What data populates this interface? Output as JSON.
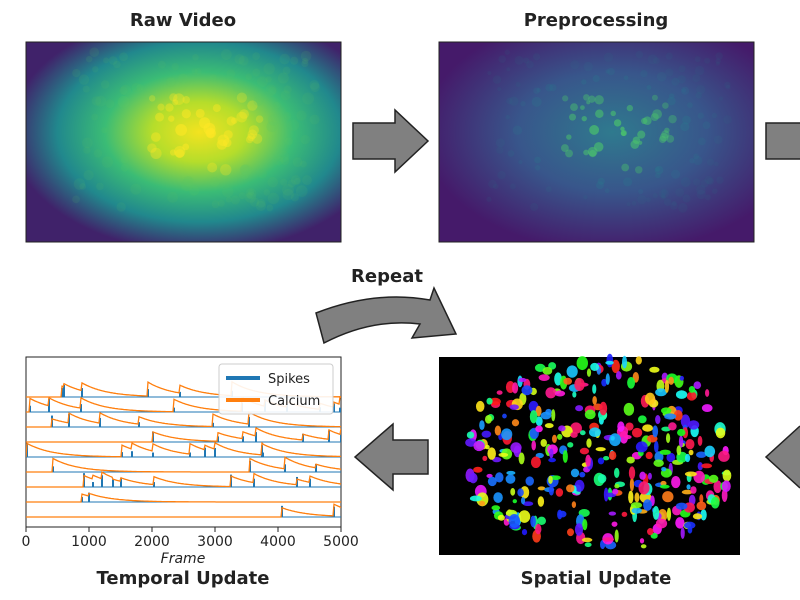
{
  "panels": {
    "raw_video": {
      "title": "Raw Video"
    },
    "preprocessing": {
      "title": "Preprocessing"
    },
    "spatial_update": {
      "title": "Spatial Update"
    },
    "temporal_update": {
      "title": "Temporal Update"
    }
  },
  "repeat_label": "Repeat",
  "temporal_plot": {
    "xlabel": "Frame",
    "xlim": [
      0,
      5000
    ],
    "xticks": [
      0,
      1000,
      2000,
      3000,
      4000,
      5000
    ],
    "legend": [
      {
        "name": "Spikes",
        "color": "#1f77b4"
      },
      {
        "name": "Calcium",
        "color": "#ff7f0e"
      }
    ]
  }
}
